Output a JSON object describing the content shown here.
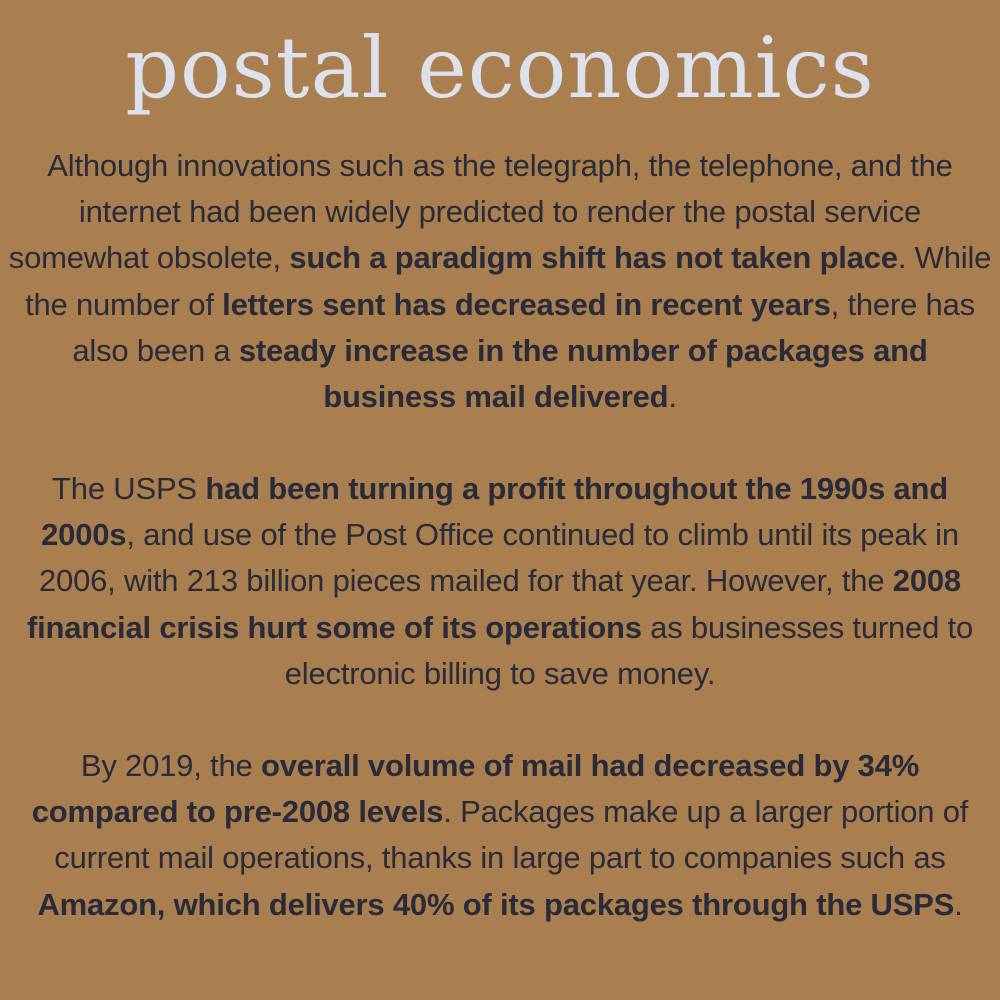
{
  "title": "postal economics",
  "paragraphs": [
    {
      "segments": [
        {
          "text": "Although innovations such as the telegraph, the telephone, and the internet had been widely predicted to render the postal service somewhat obsolete, ",
          "bold": false
        },
        {
          "text": "such a paradigm shift has not taken place",
          "bold": true
        },
        {
          "text": ". While the number of ",
          "bold": false
        },
        {
          "text": "letters sent has decreased in recent years",
          "bold": true
        },
        {
          "text": ", there has also been a ",
          "bold": false
        },
        {
          "text": "steady increase in the number of packages and business mail delivered",
          "bold": true
        },
        {
          "text": ".",
          "bold": false
        }
      ]
    },
    {
      "segments": [
        {
          "text": "The USPS ",
          "bold": false
        },
        {
          "text": "had been turning a profit throughout the 1990s and 2000s",
          "bold": true
        },
        {
          "text": ", and use of the Post Office continued to climb until its peak in 2006, with 213 billion pieces mailed for that year. However, the ",
          "bold": false
        },
        {
          "text": "2008 financial crisis hurt some of its operations",
          "bold": true
        },
        {
          "text": " as businesses turned to electronic billing to save money.",
          "bold": false
        }
      ]
    },
    {
      "segments": [
        {
          "text": "By 2019, the ",
          "bold": false
        },
        {
          "text": "overall volume of mail had decreased by 34% compared to pre-2008 levels",
          "bold": true
        },
        {
          "text": ". Packages make up a larger portion of current mail operations, thanks in large part to companies such as ",
          "bold": false
        },
        {
          "text": "Amazon, which delivers 40% of its packages through the USPS",
          "bold": true
        },
        {
          "text": ".",
          "bold": false
        }
      ]
    }
  ],
  "colors": {
    "background": "#a97f4f",
    "title": "#dde1ec",
    "body_text": "#2a2b38"
  }
}
